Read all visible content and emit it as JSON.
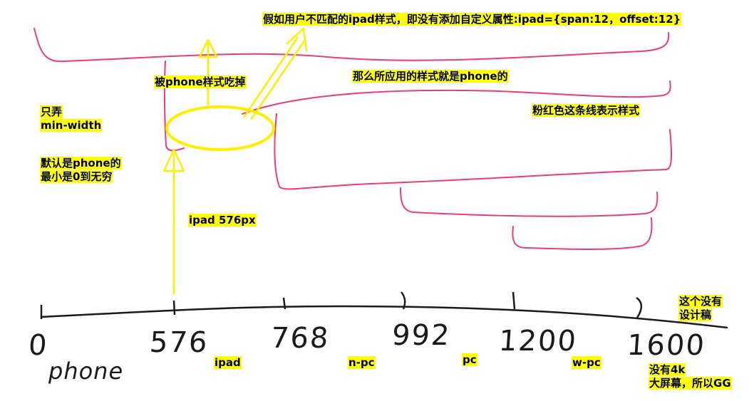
{
  "annotations": {
    "top_note": "假如用户不匹配的ipad样式，即没有添加自定义属性:ipad={span:12，offset:12}",
    "eaten": "被phone样式吃掉",
    "applied": "那么所应用的样式就是phone的",
    "pink_line": "粉红色这条线表示样式",
    "only_min_1": "只弄",
    "only_min_2": "min-width",
    "default_1": "默认是phone的",
    "default_2": "最小是0到无穷",
    "ipad_px": "ipad 576px",
    "no_design_1": "这个没有",
    "no_design_2": "设计稿",
    "no_4k_1": "没有4k",
    "no_4k_2": "大屏幕，所以GG"
  },
  "axis": {
    "ticks": [
      "0",
      "576",
      "768",
      "992",
      "1200",
      "1600"
    ],
    "zones": [
      "ipad",
      "n-pc",
      "pc",
      "w-pc"
    ],
    "first_zone_handwritten": "phone"
  },
  "colors": {
    "pink": "#ee3a7c",
    "yellow": "#ffee00",
    "axis": "#1a1a1a",
    "label_bg": "#ffff00"
  }
}
